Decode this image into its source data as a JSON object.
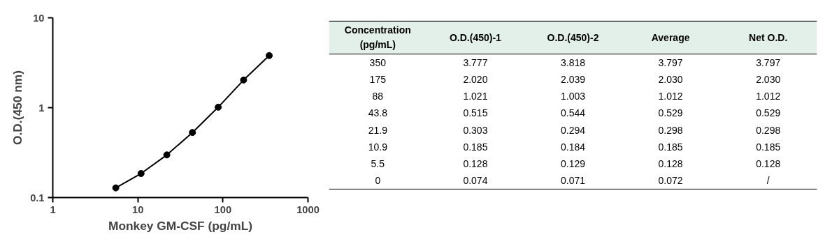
{
  "chart_data": [
    {
      "type": "line",
      "xlabel": "Monkey GM-CSF (pg/mL)",
      "ylabel": "O.D.(450 nm)",
      "log": "xy",
      "grid": false,
      "marker": "circle",
      "line_style": "solid",
      "xlim": [
        1,
        1000
      ],
      "xticks": [
        1,
        10,
        100,
        1000
      ],
      "ylim": [
        0.1,
        10
      ],
      "yticks": [
        0.1,
        1,
        10
      ],
      "x": [
        5.5,
        10.9,
        21.9,
        43.8,
        88,
        175,
        350
      ],
      "series": [
        {
          "color": "#000000",
          "values": [
            0.128,
            0.185,
            0.298,
            0.529,
            1.012,
            2.03,
            3.797
          ]
        }
      ]
    },
    {
      "type": "other",
      "annotations": [
        "Concentration\n(pg/mL)",
        "O.D.(450)-1",
        "O.D.(450)-2",
        "Average",
        "Net O.D.",
        "350",
        "3.777",
        "3.818",
        "3.797",
        "3.797",
        "175",
        "2.020",
        "2.039",
        "2.030",
        "2.030",
        "88",
        "1.021",
        "1.003",
        "1.012",
        "1.012",
        "43.8",
        "0.515",
        "0.544",
        "0.529",
        "0.529",
        "21.9",
        "0.303",
        "0.294",
        "0.298",
        "0.298",
        "10.9",
        "0.185",
        "0.184",
        "0.185",
        "0.185",
        "5.5",
        "0.128",
        "0.129",
        "0.128",
        "0.128",
        "0",
        "0.074",
        "0.071",
        "0.072",
        "/"
      ]
    }
  ]
}
